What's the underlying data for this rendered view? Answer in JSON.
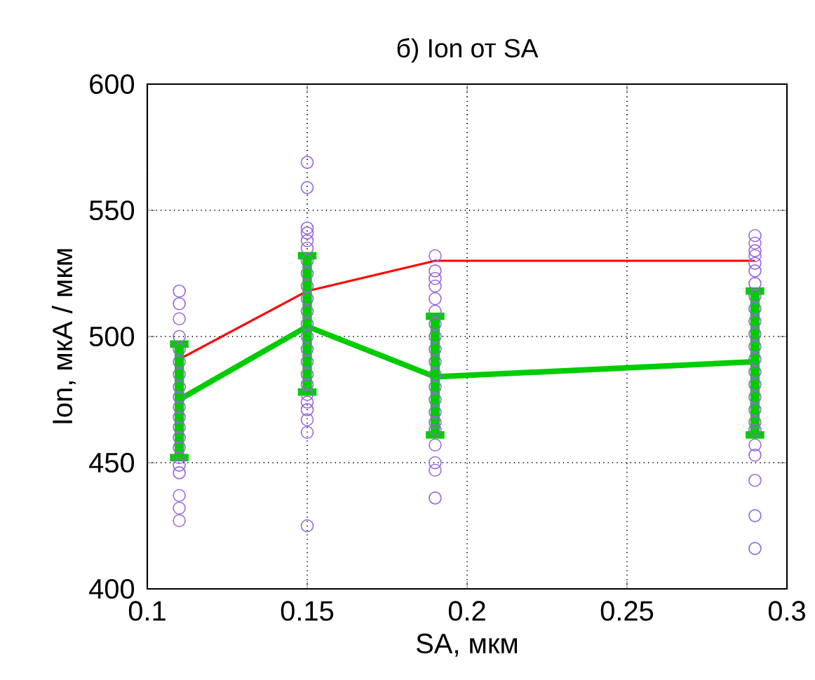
{
  "chart_data": {
    "type": "scatter",
    "title": "б) Ion от SA",
    "xlabel": "SA, мкм",
    "ylabel": "Ion, мкА / мкм",
    "xlim": [
      0.1,
      0.3
    ],
    "ylim": [
      400,
      600
    ],
    "xticks": [
      0.1,
      0.15,
      0.2,
      0.25,
      0.3
    ],
    "yticks": [
      400,
      450,
      500,
      550,
      600
    ],
    "grid": true,
    "marker": "circle",
    "series": [
      {
        "color": "#9966dd",
        "x": [
          0.11,
          0.11,
          0.11,
          0.11,
          0.11,
          0.11,
          0.11,
          0.11,
          0.11,
          0.11,
          0.11,
          0.11,
          0.11,
          0.11,
          0.11,
          0.11,
          0.11,
          0.11,
          0.11,
          0.11,
          0.15,
          0.15,
          0.15,
          0.15,
          0.15,
          0.15,
          0.15,
          0.15,
          0.15,
          0.15,
          0.15,
          0.15,
          0.15,
          0.15,
          0.15,
          0.15,
          0.15,
          0.15,
          0.15,
          0.15,
          0.15,
          0.15,
          0.15,
          0.19,
          0.19,
          0.19,
          0.19,
          0.19,
          0.19,
          0.19,
          0.19,
          0.19,
          0.19,
          0.19,
          0.19,
          0.19,
          0.19,
          0.19,
          0.19,
          0.19,
          0.19,
          0.19,
          0.19,
          0.29,
          0.29,
          0.29,
          0.29,
          0.29,
          0.29,
          0.29,
          0.29,
          0.29,
          0.29,
          0.29,
          0.29,
          0.29,
          0.29,
          0.29,
          0.29,
          0.29,
          0.29,
          0.29,
          0.29,
          0.29,
          0.29,
          0.29,
          0.29
        ],
        "values": [
          518,
          513,
          507,
          500,
          495,
          490,
          485,
          480,
          476,
          472,
          468,
          464,
          460,
          456,
          452,
          449,
          446,
          437,
          432,
          427,
          569,
          559,
          543,
          541,
          538,
          535,
          530,
          525,
          520,
          515,
          510,
          505,
          500,
          495,
          490,
          485,
          481,
          477,
          474,
          471,
          467,
          462,
          425,
          532,
          526,
          523,
          520,
          515,
          510,
          505,
          500,
          495,
          490,
          485,
          480,
          475,
          470,
          466,
          463,
          457,
          450,
          447,
          436,
          540,
          537,
          534,
          532,
          529,
          526,
          521,
          516,
          511,
          506,
          501,
          496,
          491,
          486,
          481,
          476,
          471,
          466,
          463,
          457,
          453,
          443,
          429,
          416
        ]
      },
      {
        "type": "line",
        "color": "#ff0000",
        "marker": "none",
        "x": [
          0.11,
          0.15,
          0.19,
          0.29
        ],
        "values": [
          491,
          518,
          530,
          530
        ]
      },
      {
        "type": "line",
        "color": "#00cc00",
        "marker": "none",
        "x": [
          0.11,
          0.15,
          0.19,
          0.29
        ],
        "values": [
          475,
          504,
          484,
          490
        ],
        "errors": [
          [
            452,
            497
          ],
          [
            478,
            532
          ],
          [
            461,
            508
          ],
          [
            461,
            518
          ]
        ]
      }
    ]
  }
}
